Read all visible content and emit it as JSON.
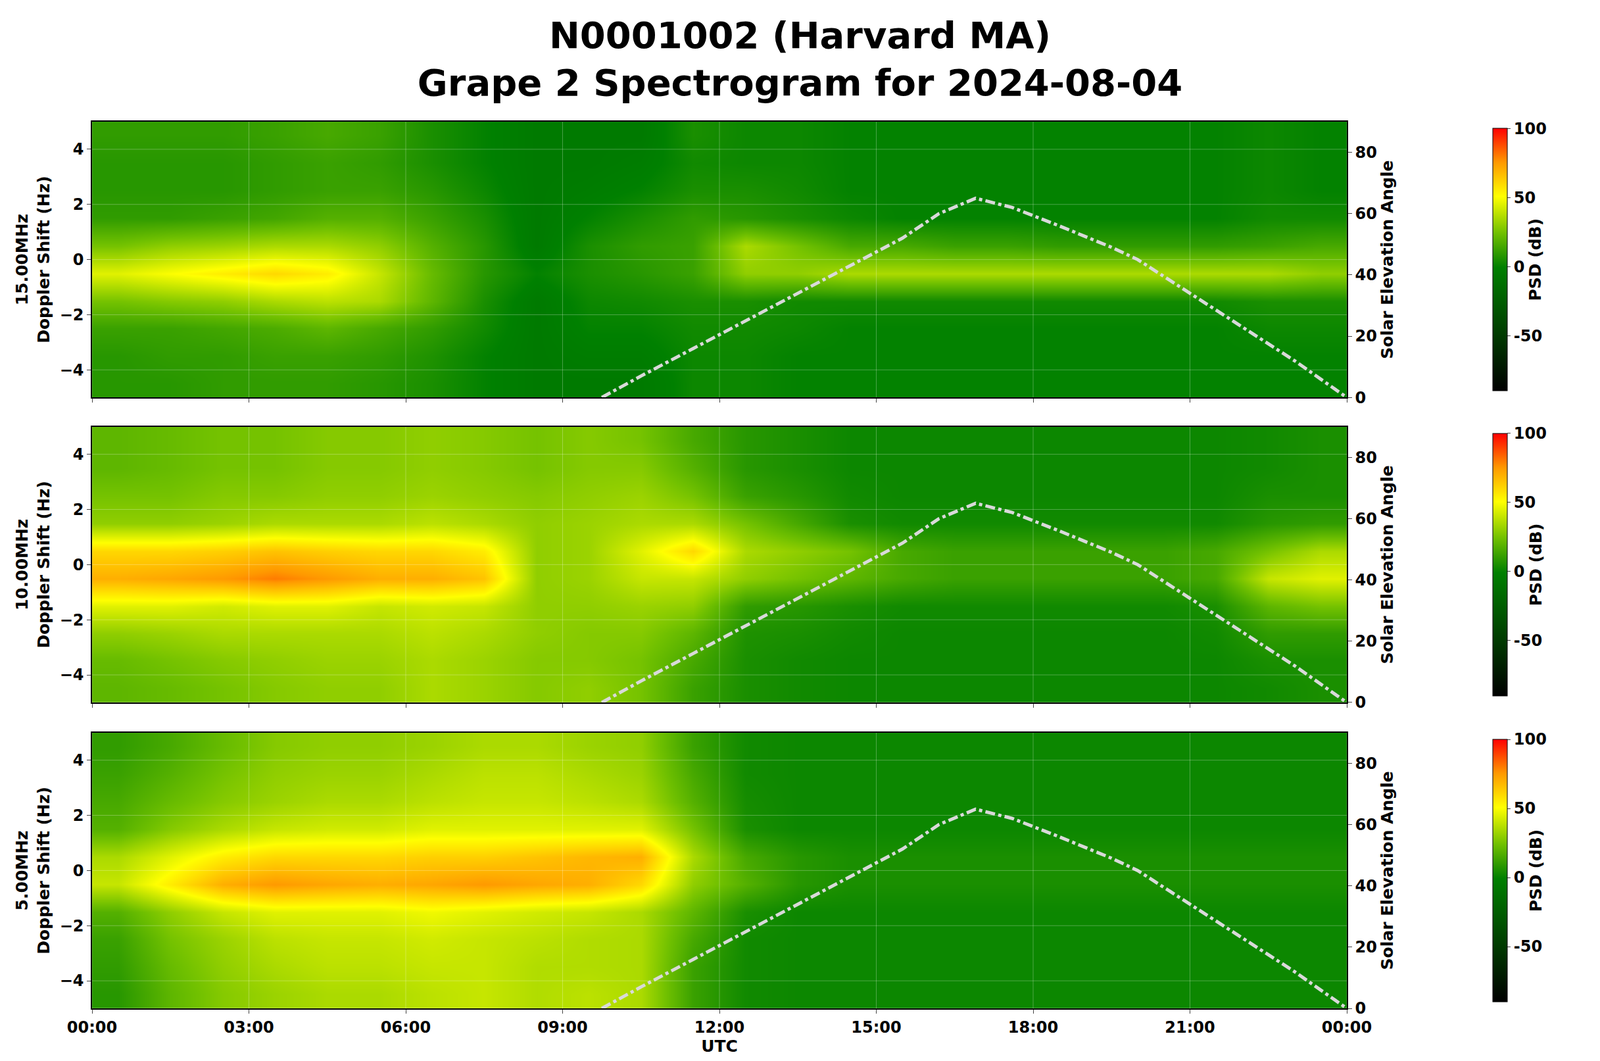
{
  "chart_data": [
    {
      "type": "heatmap",
      "title": [
        "N0001002 (Harvard MA)",
        "Grape 2 Spectrogram for 2024-08-04"
      ],
      "ylabel": [
        "15.00MHz",
        "Doppler Shift (Hz)"
      ],
      "y2label": "Solar Elevation Angle",
      "colorbar_label": "PSD (dB)",
      "tick_labels": "y",
      "grid": true,
      "x": [
        0.5,
        1.5,
        2.5,
        3.5,
        4.5,
        5.5,
        6.5,
        7.5,
        8.5,
        9.5,
        10.5,
        11.5,
        12.5,
        13.5,
        14.5,
        15.5,
        16.5,
        17.5,
        18.5,
        19.5,
        20.5,
        21.5,
        22.5,
        23.5
      ],
      "y": [
        -4.5,
        -3.5,
        -2.5,
        -1.5,
        -0.5,
        0.5,
        1.5,
        2.5,
        3.5,
        4.5
      ],
      "z": [
        [
          8,
          8,
          10,
          10,
          10,
          8,
          5,
          0,
          -5,
          -5,
          -5,
          2,
          2,
          0,
          0,
          0,
          0,
          0,
          0,
          0,
          0,
          0,
          0,
          0
        ],
        [
          8,
          10,
          10,
          12,
          12,
          10,
          6,
          0,
          -5,
          -3,
          -3,
          2,
          2,
          0,
          0,
          0,
          0,
          0,
          0,
          0,
          0,
          0,
          0,
          0
        ],
        [
          12,
          12,
          14,
          16,
          20,
          15,
          10,
          3,
          -5,
          0,
          0,
          3,
          3,
          2,
          0,
          0,
          0,
          0,
          0,
          0,
          0,
          0,
          2,
          2
        ],
        [
          25,
          28,
          30,
          35,
          38,
          35,
          20,
          5,
          -5,
          2,
          3,
          5,
          5,
          3,
          3,
          3,
          3,
          3,
          3,
          3,
          3,
          3,
          5,
          5
        ],
        [
          45,
          50,
          55,
          60,
          55,
          40,
          22,
          8,
          0,
          5,
          8,
          12,
          30,
          30,
          35,
          35,
          35,
          35,
          35,
          35,
          35,
          35,
          35,
          30
        ],
        [
          25,
          30,
          32,
          35,
          35,
          30,
          18,
          8,
          -5,
          5,
          10,
          12,
          35,
          25,
          15,
          15,
          12,
          12,
          10,
          10,
          10,
          10,
          12,
          15
        ],
        [
          10,
          10,
          12,
          14,
          18,
          18,
          12,
          5,
          -5,
          0,
          5,
          10,
          8,
          5,
          2,
          0,
          0,
          0,
          0,
          0,
          0,
          0,
          3,
          3
        ],
        [
          8,
          8,
          8,
          10,
          12,
          12,
          8,
          2,
          -5,
          -3,
          0,
          5,
          5,
          3,
          0,
          0,
          0,
          0,
          0,
          0,
          0,
          0,
          2,
          0
        ],
        [
          8,
          8,
          8,
          10,
          12,
          10,
          5,
          0,
          -5,
          -5,
          -3,
          3,
          2,
          2,
          0,
          0,
          0,
          0,
          0,
          0,
          0,
          0,
          2,
          0
        ],
        [
          10,
          10,
          10,
          12,
          15,
          12,
          5,
          0,
          -5,
          -5,
          -5,
          5,
          2,
          2,
          0,
          0,
          0,
          0,
          0,
          0,
          0,
          0,
          2,
          0
        ]
      ],
      "xlim": [
        0,
        24
      ],
      "xticks": [
        {
          "value": 0,
          "label": "00:00"
        },
        {
          "value": 3,
          "label": "03:00"
        },
        {
          "value": 6,
          "label": "06:00"
        },
        {
          "value": 9,
          "label": "09:00"
        },
        {
          "value": 12,
          "label": "12:00"
        },
        {
          "value": 15,
          "label": "15:00"
        },
        {
          "value": 18,
          "label": "18:00"
        },
        {
          "value": 21,
          "label": "21:00"
        },
        {
          "value": 24,
          "label": "00:00"
        }
      ],
      "ylim": [
        -5,
        5
      ],
      "yticks": [
        -4,
        -2,
        0,
        2,
        4
      ],
      "y2lim": [
        0,
        90
      ],
      "y2ticks": [
        0,
        20,
        40,
        60,
        80
      ],
      "zlim": [
        -90,
        100
      ],
      "zticks": [
        -50,
        0,
        50,
        100
      ],
      "solar_elevation": {
        "x": [
          9.75,
          10.5,
          11.5,
          12.5,
          13.5,
          14.5,
          15.5,
          16.2,
          16.9,
          17.6,
          18.5,
          19.5,
          20,
          21,
          22,
          23,
          24
        ],
        "values": [
          0,
          7,
          16,
          25,
          34,
          43,
          52,
          60,
          65,
          62,
          56,
          49,
          45,
          34,
          23,
          12,
          0
        ],
        "axis": "y2",
        "color": "#d9d9d9",
        "line_style": "dashdot"
      }
    },
    {
      "type": "heatmap",
      "ylabel": [
        "10.00MHz",
        "Doppler Shift (Hz)"
      ],
      "y2label": "Solar Elevation Angle",
      "colorbar_label": "PSD (dB)",
      "tick_labels": "y",
      "grid": true,
      "x": [
        0.5,
        1.5,
        2.5,
        3.5,
        4.5,
        5.5,
        6.5,
        7.5,
        8.5,
        9.5,
        10.5,
        11.5,
        12.5,
        13.5,
        14.5,
        15.5,
        16.5,
        17.5,
        18.5,
        19.5,
        20.5,
        21.5,
        22.5,
        23.5
      ],
      "y": [
        -4.5,
        -3.5,
        -2.5,
        -1.5,
        -0.5,
        0.5,
        1.5,
        2.5,
        3.5,
        4.5
      ],
      "z": [
        [
          20,
          22,
          25,
          28,
          30,
          30,
          35,
          32,
          28,
          30,
          25,
          12,
          5,
          3,
          2,
          2,
          2,
          2,
          2,
          2,
          2,
          2,
          3,
          5
        ],
        [
          22,
          25,
          28,
          30,
          32,
          32,
          35,
          32,
          28,
          28,
          25,
          15,
          5,
          3,
          2,
          2,
          2,
          2,
          2,
          2,
          2,
          2,
          5,
          5
        ],
        [
          30,
          32,
          35,
          35,
          35,
          35,
          38,
          35,
          30,
          28,
          28,
          20,
          6,
          5,
          3,
          2,
          2,
          2,
          2,
          2,
          2,
          3,
          10,
          10
        ],
        [
          45,
          45,
          42,
          45,
          45,
          40,
          42,
          40,
          30,
          30,
          32,
          30,
          10,
          8,
          5,
          3,
          3,
          3,
          3,
          3,
          3,
          5,
          20,
          25
        ],
        [
          70,
          72,
          75,
          80,
          75,
          70,
          70,
          65,
          30,
          32,
          40,
          40,
          30,
          25,
          20,
          15,
          12,
          12,
          12,
          12,
          12,
          15,
          40,
          45
        ],
        [
          60,
          60,
          62,
          65,
          62,
          60,
          60,
          55,
          30,
          32,
          45,
          60,
          35,
          30,
          25,
          15,
          12,
          12,
          12,
          12,
          12,
          15,
          25,
          35
        ],
        [
          30,
          30,
          32,
          35,
          35,
          35,
          38,
          35,
          30,
          32,
          35,
          35,
          25,
          15,
          5,
          3,
          3,
          3,
          3,
          3,
          3,
          3,
          8,
          10
        ],
        [
          25,
          25,
          28,
          28,
          30,
          30,
          32,
          30,
          28,
          30,
          32,
          25,
          12,
          8,
          3,
          2,
          2,
          2,
          2,
          2,
          2,
          2,
          5,
          5
        ],
        [
          20,
          22,
          25,
          25,
          28,
          28,
          30,
          28,
          25,
          28,
          28,
          18,
          8,
          5,
          2,
          2,
          2,
          2,
          2,
          2,
          2,
          2,
          3,
          5
        ],
        [
          20,
          22,
          25,
          25,
          28,
          28,
          30,
          28,
          25,
          28,
          25,
          15,
          8,
          5,
          2,
          2,
          2,
          2,
          2,
          2,
          2,
          2,
          3,
          5
        ]
      ],
      "xlim": [
        0,
        24
      ],
      "xticks": [
        {
          "value": 0,
          "label": "00:00"
        },
        {
          "value": 3,
          "label": "03:00"
        },
        {
          "value": 6,
          "label": "06:00"
        },
        {
          "value": 9,
          "label": "09:00"
        },
        {
          "value": 12,
          "label": "12:00"
        },
        {
          "value": 15,
          "label": "15:00"
        },
        {
          "value": 18,
          "label": "18:00"
        },
        {
          "value": 21,
          "label": "21:00"
        },
        {
          "value": 24,
          "label": "00:00"
        }
      ],
      "ylim": [
        -5,
        5
      ],
      "yticks": [
        -4,
        -2,
        0,
        2,
        4
      ],
      "y2lim": [
        0,
        90
      ],
      "y2ticks": [
        0,
        20,
        40,
        60,
        80
      ],
      "zlim": [
        -90,
        100
      ],
      "zticks": [
        -50,
        0,
        50,
        100
      ],
      "solar_elevation": {
        "x": [
          9.75,
          10.5,
          11.5,
          12.5,
          13.5,
          14.5,
          15.5,
          16.2,
          16.9,
          17.6,
          18.5,
          19.5,
          20,
          21,
          22,
          23,
          24
        ],
        "values": [
          0,
          7,
          16,
          25,
          34,
          43,
          52,
          60,
          65,
          62,
          56,
          49,
          45,
          34,
          23,
          12,
          0
        ],
        "axis": "y2",
        "color": "#d9d9d9",
        "line_style": "dashdot"
      }
    },
    {
      "type": "heatmap",
      "xlabel": "UTC",
      "ylabel": [
        "5.00MHz",
        "Doppler Shift (Hz)"
      ],
      "y2label": "Solar Elevation Angle",
      "colorbar_label": "PSD (dB)",
      "grid": true,
      "x": [
        0.5,
        1.5,
        2.5,
        3.5,
        4.5,
        5.5,
        6.5,
        7.5,
        8.5,
        9.5,
        10.5,
        11.5,
        12.5,
        13.5,
        14.5,
        15.5,
        16.5,
        17.5,
        18.5,
        19.5,
        20.5,
        21.5,
        22.5,
        23.5
      ],
      "y": [
        -4.5,
        -3.5,
        -2.5,
        -1.5,
        -0.5,
        0.5,
        1.5,
        2.5,
        3.5,
        4.5
      ],
      "z": [
        [
          8,
          20,
          28,
          32,
          35,
          35,
          38,
          40,
          36,
          38,
          35,
          12,
          3,
          2,
          2,
          2,
          2,
          2,
          2,
          2,
          2,
          2,
          2,
          2
        ],
        [
          10,
          22,
          30,
          35,
          38,
          38,
          40,
          40,
          36,
          36,
          35,
          12,
          3,
          2,
          2,
          2,
          2,
          2,
          2,
          2,
          2,
          2,
          2,
          2
        ],
        [
          12,
          25,
          32,
          38,
          40,
          40,
          42,
          40,
          38,
          36,
          35,
          15,
          3,
          2,
          2,
          2,
          2,
          2,
          2,
          2,
          2,
          2,
          2,
          2
        ],
        [
          18,
          30,
          40,
          45,
          45,
          45,
          48,
          45,
          42,
          40,
          35,
          20,
          5,
          2,
          2,
          2,
          2,
          2,
          2,
          2,
          2,
          2,
          2,
          2
        ],
        [
          40,
          55,
          70,
          75,
          72,
          70,
          72,
          75,
          72,
          70,
          60,
          30,
          18,
          8,
          5,
          5,
          5,
          5,
          5,
          5,
          5,
          5,
          5,
          5
        ],
        [
          35,
          45,
          55,
          60,
          60,
          60,
          62,
          62,
          65,
          68,
          70,
          35,
          15,
          8,
          5,
          5,
          5,
          5,
          5,
          5,
          5,
          5,
          5,
          5
        ],
        [
          18,
          28,
          35,
          40,
          42,
          42,
          45,
          45,
          45,
          45,
          45,
          25,
          5,
          2,
          2,
          2,
          2,
          2,
          2,
          2,
          2,
          2,
          2,
          2
        ],
        [
          15,
          22,
          28,
          32,
          35,
          35,
          38,
          40,
          40,
          38,
          35,
          18,
          4,
          2,
          2,
          2,
          2,
          2,
          2,
          2,
          2,
          2,
          2,
          2
        ],
        [
          12,
          18,
          25,
          30,
          32,
          32,
          35,
          38,
          38,
          35,
          32,
          15,
          3,
          2,
          2,
          2,
          2,
          2,
          2,
          2,
          2,
          2,
          2,
          2
        ],
        [
          10,
          15,
          22,
          28,
          30,
          30,
          32,
          35,
          35,
          32,
          30,
          12,
          3,
          2,
          2,
          2,
          2,
          2,
          2,
          2,
          2,
          2,
          2,
          2
        ]
      ],
      "xlim": [
        0,
        24
      ],
      "xticks": [
        {
          "value": 0,
          "label": "00:00"
        },
        {
          "value": 3,
          "label": "03:00"
        },
        {
          "value": 6,
          "label": "06:00"
        },
        {
          "value": 9,
          "label": "09:00"
        },
        {
          "value": 12,
          "label": "12:00"
        },
        {
          "value": 15,
          "label": "15:00"
        },
        {
          "value": 18,
          "label": "18:00"
        },
        {
          "value": 21,
          "label": "21:00"
        },
        {
          "value": 24,
          "label": "00:00"
        }
      ],
      "ylim": [
        -5,
        5
      ],
      "yticks": [
        -4,
        -2,
        0,
        2,
        4
      ],
      "y2lim": [
        0,
        90
      ],
      "y2ticks": [
        0,
        20,
        40,
        60,
        80
      ],
      "zlim": [
        -90,
        100
      ],
      "zticks": [
        -50,
        0,
        50,
        100
      ],
      "solar_elevation": {
        "x": [
          9.75,
          10.5,
          11.5,
          12.5,
          13.5,
          14.5,
          15.5,
          16.2,
          16.9,
          17.6,
          18.5,
          19.5,
          20,
          21,
          22,
          23,
          24
        ],
        "values": [
          0,
          7,
          16,
          25,
          34,
          43,
          52,
          60,
          65,
          62,
          56,
          49,
          45,
          34,
          23,
          12,
          0
        ],
        "axis": "y2",
        "color": "#d9d9d9",
        "line_style": "dashdot"
      }
    }
  ]
}
